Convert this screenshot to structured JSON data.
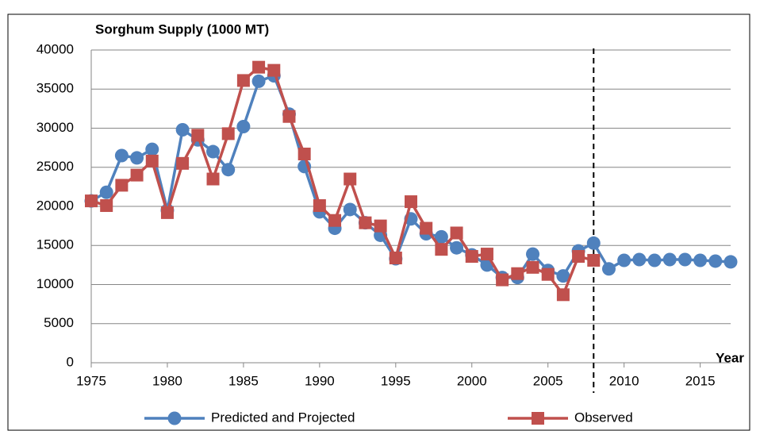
{
  "chart_data": {
    "type": "line",
    "title": "Sorghum Supply (1000 MT)",
    "x_label": "Year",
    "x": [
      1975,
      1976,
      1977,
      1978,
      1979,
      1980,
      1981,
      1982,
      1983,
      1984,
      1985,
      1986,
      1987,
      1988,
      1989,
      1990,
      1991,
      1992,
      1993,
      1994,
      1995,
      1996,
      1997,
      1998,
      1999,
      2000,
      2001,
      2002,
      2003,
      2004,
      2005,
      2006,
      2007,
      2008,
      2009,
      2010,
      2011,
      2012,
      2013,
      2014,
      2015,
      2016,
      2017
    ],
    "series": [
      {
        "name": "Predicted and Projected",
        "color": "#4f81bd",
        "marker": "circle",
        "values": [
          20700,
          21800,
          26500,
          26200,
          27300,
          19500,
          29800,
          28500,
          27000,
          24700,
          30200,
          36000,
          36700,
          31800,
          25100,
          19300,
          17200,
          19600,
          17900,
          16300,
          13300,
          18400,
          16500,
          16100,
          14700,
          13800,
          12500,
          10900,
          10900,
          13900,
          11800,
          11100,
          14300,
          15300,
          12000,
          13100,
          13200,
          13100,
          13200,
          13200,
          13100,
          13000,
          12900
        ]
      },
      {
        "name": "Observed",
        "color": "#c0504d",
        "marker": "square",
        "values": [
          20700,
          20100,
          22700,
          24000,
          25800,
          19200,
          25500,
          29100,
          23500,
          29300,
          36100,
          37800,
          37400,
          31500,
          26700,
          20100,
          18200,
          23500,
          17900,
          17500,
          13400,
          20600,
          17200,
          14500,
          16600,
          13600,
          13900,
          10600,
          11400,
          12200,
          11300,
          8700,
          13600,
          13100,
          null,
          null,
          null,
          null,
          null,
          null,
          null,
          null,
          null
        ]
      }
    ],
    "xlim": [
      1975,
      2017
    ],
    "xticks": [
      1975,
      1980,
      1985,
      1990,
      1995,
      2000,
      2005,
      2010,
      2015
    ],
    "ylim": [
      0,
      40000
    ],
    "yticks": [
      0,
      5000,
      10000,
      15000,
      20000,
      25000,
      30000,
      35000,
      40000
    ],
    "grid": true,
    "vline": 2008,
    "legend": "bottom"
  }
}
